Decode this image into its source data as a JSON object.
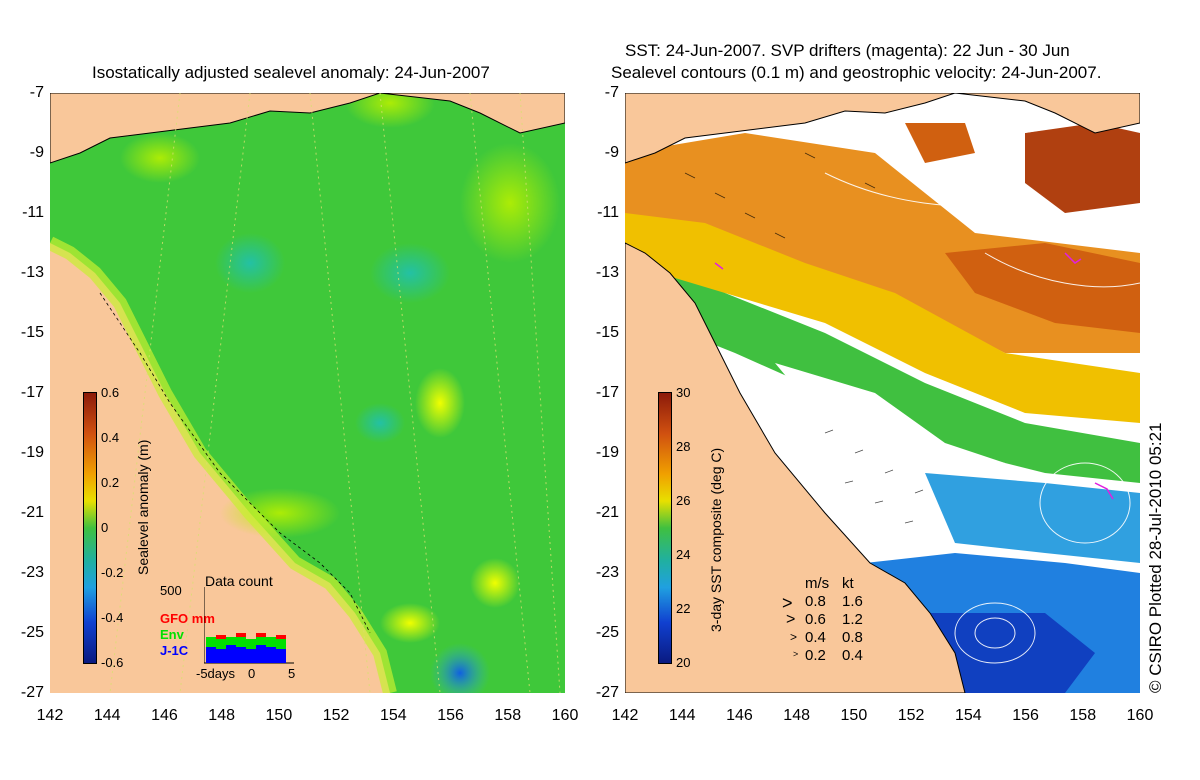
{
  "left_panel": {
    "title": "Isostatically adjusted sealevel anomaly: 24-Jun-2007",
    "colorbar": {
      "label": "Sealevel anomaly (m)",
      "ticks": [
        "0.6",
        "0.4",
        "0.2",
        "0",
        "-0.2",
        "-0.4",
        "-0.6"
      ]
    },
    "data_count": {
      "title": "Data count",
      "ymax": "500",
      "legend": [
        {
          "label": "GFO mm",
          "color": "#ff0000"
        },
        {
          "label": "Env",
          "color": "#00ff00"
        },
        {
          "label": "J-1C",
          "color": "#0000ff"
        }
      ],
      "xticks": [
        "-5days",
        "0",
        "5"
      ]
    }
  },
  "right_panel": {
    "title_line1": "SST: 24-Jun-2007. SVP drifters (magenta): 22 Jun - 30 Jun",
    "title_line2": "Sealevel contours (0.1 m) and geostrophic velocity: 24-Jun-2007.",
    "colorbar": {
      "label": "3-day SST composite (deg C)",
      "ticks": [
        "30",
        "28",
        "26",
        "24",
        "22",
        "20"
      ]
    },
    "velocity_legend": {
      "header_ms": "m/s",
      "header_kt": "kt",
      "rows": [
        {
          "ms": "0.8",
          "kt": "1.6"
        },
        {
          "ms": "0.6",
          "kt": "1.2"
        },
        {
          "ms": "0.4",
          "kt": "0.8"
        },
        {
          "ms": "0.2",
          "kt": "0.4"
        }
      ]
    }
  },
  "axes": {
    "y_ticks": [
      "-7",
      "-9",
      "-11",
      "-13",
      "-15",
      "-17",
      "-19",
      "-21",
      "-23",
      "-25",
      "-27"
    ],
    "x_ticks": [
      "142",
      "144",
      "146",
      "148",
      "150",
      "152",
      "154",
      "156",
      "158",
      "160"
    ]
  },
  "credit": "© CSIRO Plotted 28-Jul-2010 05:21",
  "colors": {
    "land": "#f9c79a",
    "ocean_anomaly": "#3fc83a",
    "sst_warm": "#e07a10",
    "sst_mid": "#f0c000",
    "sst_cool": "#1e60d8"
  }
}
